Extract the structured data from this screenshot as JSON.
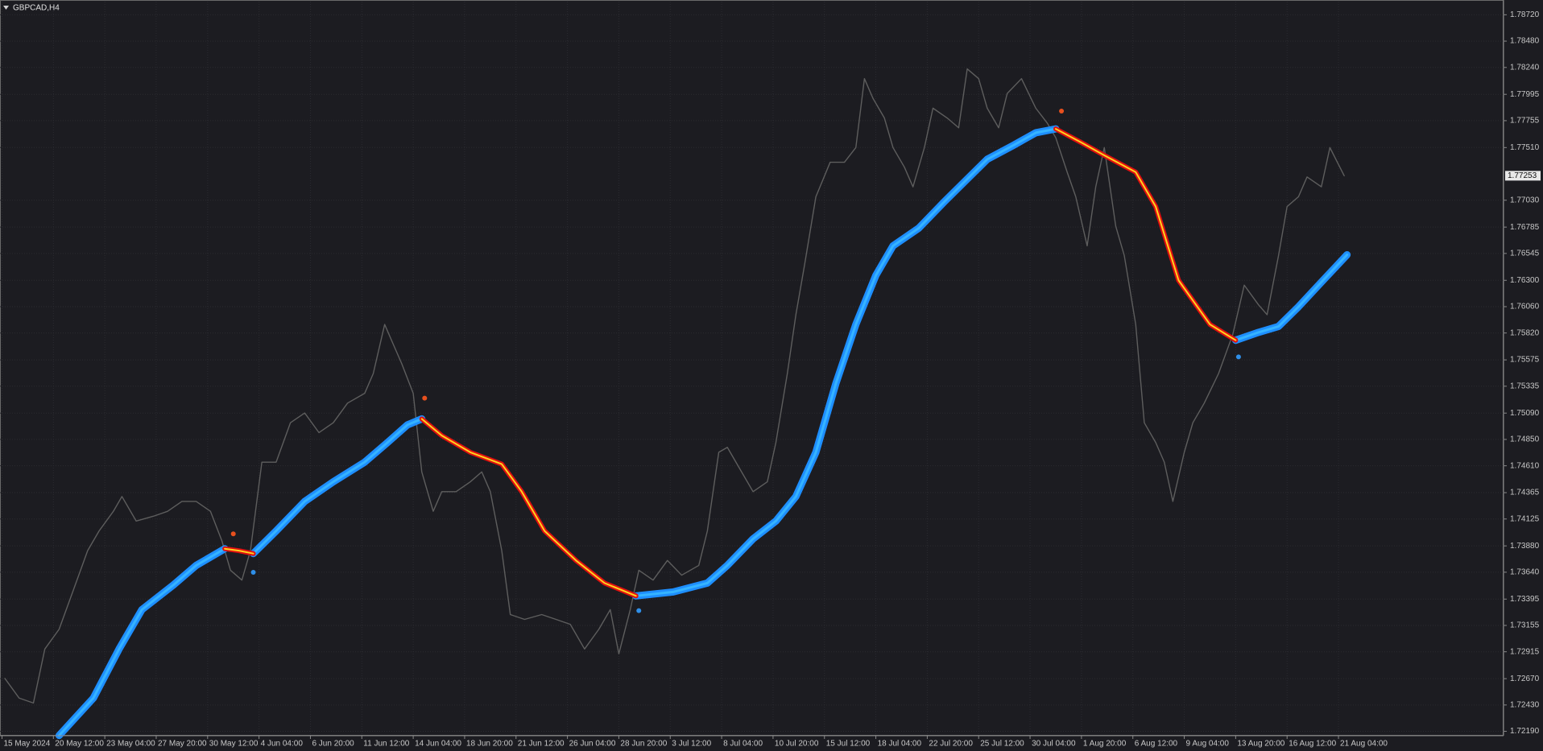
{
  "chart_data": {
    "type": "line",
    "title": "GBPCAD,H4",
    "grid": true,
    "xlim": [
      -0.7,
      525.8
    ],
    "xticks": [
      {
        "value": 0,
        "label": "15 May 2024"
      },
      {
        "value": 18,
        "label": "20 May 12:00"
      },
      {
        "value": 36,
        "label": "23 May 04:00"
      },
      {
        "value": 54,
        "label": "27 May 20:00"
      },
      {
        "value": 72,
        "label": "30 May 12:00"
      },
      {
        "value": 90,
        "label": "4 Jun 04:00"
      },
      {
        "value": 108,
        "label": "6 Jun 20:00"
      },
      {
        "value": 126,
        "label": "11 Jun 12:00"
      },
      {
        "value": 144,
        "label": "14 Jun 04:00"
      },
      {
        "value": 162,
        "label": "18 Jun 20:00"
      },
      {
        "value": 180,
        "label": "21 Jun 12:00"
      },
      {
        "value": 198,
        "label": "26 Jun 04:00"
      },
      {
        "value": 216,
        "label": "28 Jun 20:00"
      },
      {
        "value": 234,
        "label": "3 Jul 12:00"
      },
      {
        "value": 252,
        "label": "8 Jul 04:00"
      },
      {
        "value": 270,
        "label": "10 Jul 20:00"
      },
      {
        "value": 288,
        "label": "15 Jul 12:00"
      },
      {
        "value": 306,
        "label": "18 Jul 04:00"
      },
      {
        "value": 324,
        "label": "22 Jul 20:00"
      },
      {
        "value": 342,
        "label": "25 Jul 12:00"
      },
      {
        "value": 360,
        "label": "30 Jul 04:00"
      },
      {
        "value": 378,
        "label": "1 Aug 20:00"
      },
      {
        "value": 396,
        "label": "6 Aug 12:00"
      },
      {
        "value": 414,
        "label": "9 Aug 04:00"
      },
      {
        "value": 432,
        "label": "13 Aug 20:00"
      },
      {
        "value": 450,
        "label": "16 Aug 12:00"
      },
      {
        "value": 468,
        "label": "21 Aug 04:00"
      }
    ],
    "ylim": [
      1.7215,
      1.7884
    ],
    "yticks": [
      {
        "value": 1.7872,
        "label": "1.78720"
      },
      {
        "value": 1.7848,
        "label": "1.78480"
      },
      {
        "value": 1.7824,
        "label": "1.78240"
      },
      {
        "value": 1.77995,
        "label": "1.77995"
      },
      {
        "value": 1.77755,
        "label": "1.77755"
      },
      {
        "value": 1.7751,
        "label": "1.77510"
      },
      {
        "value": 1.7703,
        "label": "1.77030"
      },
      {
        "value": 1.76785,
        "label": "1.76785"
      },
      {
        "value": 1.76545,
        "label": "1.76545"
      },
      {
        "value": 1.763,
        "label": "1.76300"
      },
      {
        "value": 1.7606,
        "label": "1.76060"
      },
      {
        "value": 1.7582,
        "label": "1.75820"
      },
      {
        "value": 1.75575,
        "label": "1.75575"
      },
      {
        "value": 1.75335,
        "label": "1.75335"
      },
      {
        "value": 1.7509,
        "label": "1.75090"
      },
      {
        "value": 1.7485,
        "label": "1.74850"
      },
      {
        "value": 1.7461,
        "label": "1.74610"
      },
      {
        "value": 1.74365,
        "label": "1.74365"
      },
      {
        "value": 1.74125,
        "label": "1.74125"
      },
      {
        "value": 1.7388,
        "label": "1.73880"
      },
      {
        "value": 1.7364,
        "label": "1.73640"
      },
      {
        "value": 1.73395,
        "label": "1.73395"
      },
      {
        "value": 1.73155,
        "label": "1.73155"
      },
      {
        "value": 1.72915,
        "label": "1.72915"
      },
      {
        "value": 1.7267,
        "label": "1.72670"
      },
      {
        "value": 1.7243,
        "label": "1.72430"
      },
      {
        "value": 1.7219,
        "label": "1.72190"
      }
    ],
    "current_price": {
      "value": 1.77253,
      "label": "1.77253"
    },
    "series": [
      {
        "type": "line",
        "color": "#5e5e5e",
        "width": 1.4,
        "x": [
          1,
          6,
          11,
          15,
          20,
          25,
          30,
          34,
          39,
          42,
          47,
          53,
          58,
          63,
          68,
          73,
          77,
          80,
          84,
          87,
          91,
          96,
          101,
          106,
          111,
          116,
          121,
          127,
          130,
          134,
          137,
          140,
          144,
          147,
          151,
          154,
          159,
          164,
          168,
          171,
          175,
          178,
          183,
          189,
          194,
          199,
          204,
          209,
          213,
          216,
          220,
          223,
          228,
          233,
          238,
          244,
          247,
          251,
          254,
          257,
          263,
          268,
          271,
          275,
          278,
          281,
          285,
          290,
          295,
          299,
          302,
          305,
          309,
          312,
          316,
          319,
          323,
          326,
          331,
          335,
          338,
          342,
          345,
          349,
          352,
          357,
          362,
          366,
          369,
          373,
          376,
          380,
          383,
          386,
          390,
          393,
          397,
          400,
          404,
          407,
          410,
          414,
          417,
          421,
          426,
          431,
          435,
          440,
          443,
          447,
          450,
          454,
          457,
          462,
          465,
          470
        ],
        "values": [
          1.72672,
          1.72493,
          1.72448,
          1.7294,
          1.7312,
          1.73478,
          1.73837,
          1.74016,
          1.74195,
          1.7433,
          1.74106,
          1.7415,
          1.74195,
          1.74285,
          1.74285,
          1.74195,
          1.73926,
          1.73658,
          1.73568,
          1.73837,
          1.74643,
          1.74643,
          1.75002,
          1.75091,
          1.74912,
          1.75002,
          1.75181,
          1.7527,
          1.7545,
          1.75898,
          1.75718,
          1.75539,
          1.7527,
          1.74554,
          1.74195,
          1.74374,
          1.74374,
          1.74464,
          1.74554,
          1.74374,
          1.73837,
          1.73254,
          1.7321,
          1.73254,
          1.7321,
          1.73165,
          1.7294,
          1.7312,
          1.73299,
          1.72896,
          1.73299,
          1.73658,
          1.73568,
          1.73747,
          1.73613,
          1.73702,
          1.74016,
          1.74733,
          1.74778,
          1.74643,
          1.74374,
          1.74464,
          1.74822,
          1.7545,
          1.75987,
          1.76435,
          1.77062,
          1.77376,
          1.77376,
          1.7751,
          1.78138,
          1.77958,
          1.77779,
          1.7751,
          1.77331,
          1.77152,
          1.7751,
          1.77869,
          1.77779,
          1.7769,
          1.78227,
          1.78138,
          1.77869,
          1.7769,
          1.78003,
          1.78138,
          1.77869,
          1.77734,
          1.776,
          1.77286,
          1.77062,
          1.76614,
          1.77152,
          1.7751,
          1.76794,
          1.76525,
          1.75898,
          1.75002,
          1.74822,
          1.74643,
          1.74285,
          1.74733,
          1.75002,
          1.75181,
          1.7545,
          1.75808,
          1.76256,
          1.76077,
          1.75987,
          1.76525,
          1.76972,
          1.77062,
          1.77242,
          1.77152,
          1.7751,
          1.77253
        ]
      },
      {
        "type": "line",
        "color": "#1e8fff",
        "core_color": "#36b4ff",
        "width": 9,
        "x": [
          20,
          32,
          41,
          49,
          60,
          68,
          78,
          83,
          88,
          96,
          106,
          116,
          127,
          135,
          142,
          147,
          154,
          164,
          175,
          182,
          190,
          201,
          211,
          222,
          235,
          247,
          254,
          263,
          271,
          278,
          285,
          292,
          299,
          306,
          312,
          321,
          330,
          338,
          345,
          354,
          362,
          369,
          378,
          386,
          397,
          404,
          412,
          423,
          432,
          440,
          447,
          454,
          462,
          471
        ],
        "values": [
          1.72152,
          1.72493,
          1.7294,
          1.73299,
          1.73523,
          1.73702,
          1.73854,
          null,
          1.7381,
          1.74016,
          1.74285,
          1.74464,
          1.74643,
          1.74822,
          1.74983,
          1.75037,
          null,
          null,
          null,
          null,
          null,
          null,
          null,
          1.73424,
          1.7346,
          1.73541,
          1.73702,
          1.73944,
          1.74106,
          1.7433,
          1.74733,
          1.7536,
          1.75898,
          1.76345,
          1.76614,
          1.76775,
          1.77017,
          1.77223,
          1.77403,
          1.77528,
          1.77645,
          1.7768,
          null,
          null,
          null,
          null,
          null,
          null,
          1.75754,
          1.75826,
          1.7588,
          1.76059,
          1.76283,
          1.76533
        ]
      },
      {
        "type": "line",
        "color": "#e01010",
        "core_color": "#ffd21e",
        "width": 6,
        "x": [
          20,
          32,
          41,
          49,
          60,
          68,
          78,
          83,
          88,
          96,
          106,
          116,
          127,
          135,
          142,
          147,
          154,
          164,
          175,
          182,
          190,
          201,
          211,
          222,
          235,
          247,
          254,
          263,
          271,
          278,
          285,
          292,
          299,
          306,
          312,
          321,
          330,
          338,
          345,
          354,
          362,
          369,
          378,
          386,
          397,
          404,
          412,
          423,
          432,
          440,
          447,
          454,
          462,
          471
        ],
        "values": [
          null,
          null,
          null,
          null,
          null,
          null,
          1.73854,
          1.73836,
          1.7381,
          null,
          null,
          null,
          null,
          null,
          null,
          1.75037,
          1.74885,
          1.74733,
          1.74625,
          1.74374,
          1.74016,
          1.73747,
          1.73541,
          1.73424,
          null,
          null,
          null,
          null,
          null,
          null,
          null,
          null,
          null,
          null,
          null,
          null,
          null,
          null,
          null,
          null,
          null,
          1.7768,
          1.77555,
          1.77439,
          1.77286,
          1.76972,
          1.763,
          1.75898,
          1.75754,
          null,
          null,
          null,
          null,
          null
        ]
      },
      {
        "type": "scatter",
        "color": "#e8501e",
        "x": [
          81,
          148,
          371
        ],
        "values": [
          1.73989,
          1.75226,
          1.77842
        ]
      },
      {
        "type": "scatter",
        "color": "#2f8fe8",
        "x": [
          88,
          223,
          433
        ],
        "values": [
          1.73639,
          1.7329,
          1.75602
        ]
      }
    ]
  }
}
